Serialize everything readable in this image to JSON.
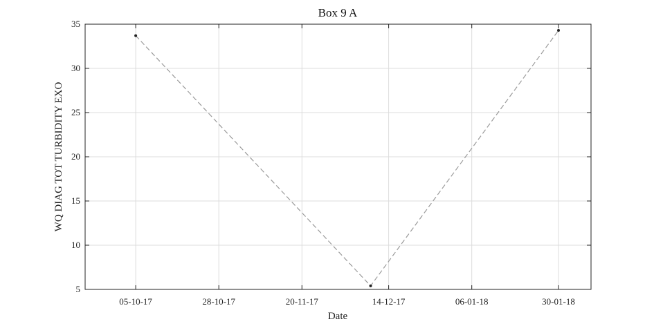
{
  "chart_data": {
    "type": "line",
    "title": "Box 9 A",
    "xlabel": "Date",
    "ylabel": "WQ DIAG TOT TURBIDITY EXO",
    "x_ticks": [
      "05-10-17",
      "28-10-17",
      "20-11-17",
      "14-12-17",
      "06-01-18",
      "30-01-18"
    ],
    "x_tick_dates": [
      "2017-10-05",
      "2017-10-28",
      "2017-11-20",
      "2017-12-14",
      "2018-01-06",
      "2018-01-30"
    ],
    "xlim": [
      "2017-09-21",
      "2018-02-08"
    ],
    "ylim": [
      5,
      35
    ],
    "y_ticks": [
      5,
      10,
      15,
      20,
      25,
      30,
      35
    ],
    "grid": true,
    "series": [
      {
        "x": [
          "2017-10-05",
          "2017-12-09",
          "2018-01-30"
        ],
        "y": [
          33.7,
          5.4,
          34.3
        ],
        "line_color": "#9a9a9a",
        "marker_color": "#222222"
      }
    ]
  }
}
